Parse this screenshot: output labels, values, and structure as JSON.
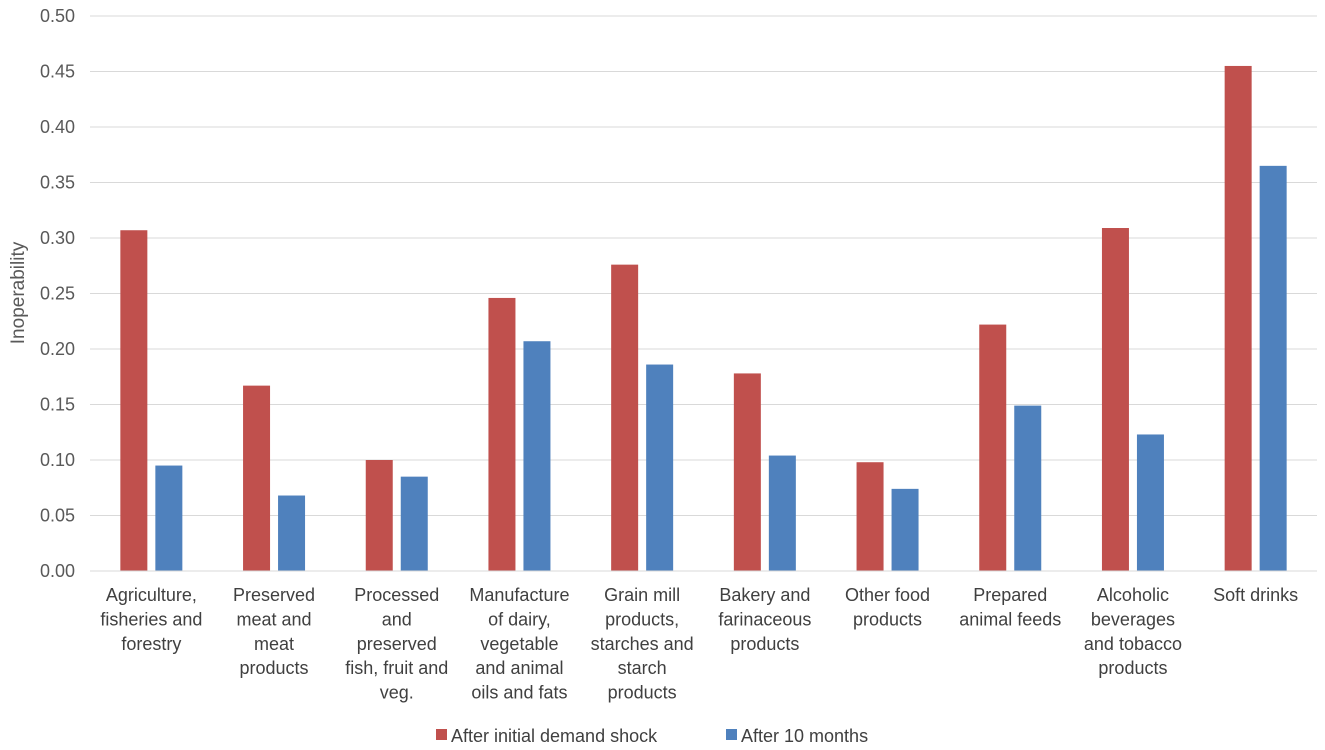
{
  "chart_data": {
    "type": "bar",
    "title": "",
    "xlabel": "",
    "ylabel": "Inoperability",
    "ylim": [
      0,
      0.5
    ],
    "yticks": [
      "0.00",
      "0.05",
      "0.10",
      "0.15",
      "0.20",
      "0.25",
      "0.30",
      "0.35",
      "0.40",
      "0.45",
      "0.50"
    ],
    "grid": true,
    "legend_position": "bottom",
    "categories": [
      [
        "Agriculture,",
        "fisheries and",
        "forestry"
      ],
      [
        "Preserved",
        "meat and",
        "meat",
        "products"
      ],
      [
        "Processed",
        "and",
        "preserved",
        "fish, fruit and",
        "veg."
      ],
      [
        "Manufacture",
        "of dairy,",
        "vegetable",
        "and animal",
        "oils and fats"
      ],
      [
        "Grain mill",
        "products,",
        "starches and",
        "starch",
        "products"
      ],
      [
        "Bakery and",
        "farinaceous",
        "products"
      ],
      [
        "Other food",
        "products"
      ],
      [
        "Prepared",
        "animal feeds"
      ],
      [
        "Alcoholic",
        "beverages",
        "and tobacco",
        "products"
      ],
      [
        "Soft drinks"
      ]
    ],
    "series": [
      {
        "name": "After initial demand shock",
        "color": "#c0504d",
        "values": [
          0.307,
          0.167,
          0.1,
          0.246,
          0.276,
          0.178,
          0.098,
          0.222,
          0.309,
          0.455
        ]
      },
      {
        "name": "After 10 months",
        "color": "#4f81bd",
        "values": [
          0.095,
          0.068,
          0.085,
          0.207,
          0.186,
          0.104,
          0.074,
          0.149,
          0.123,
          0.365
        ]
      }
    ]
  }
}
